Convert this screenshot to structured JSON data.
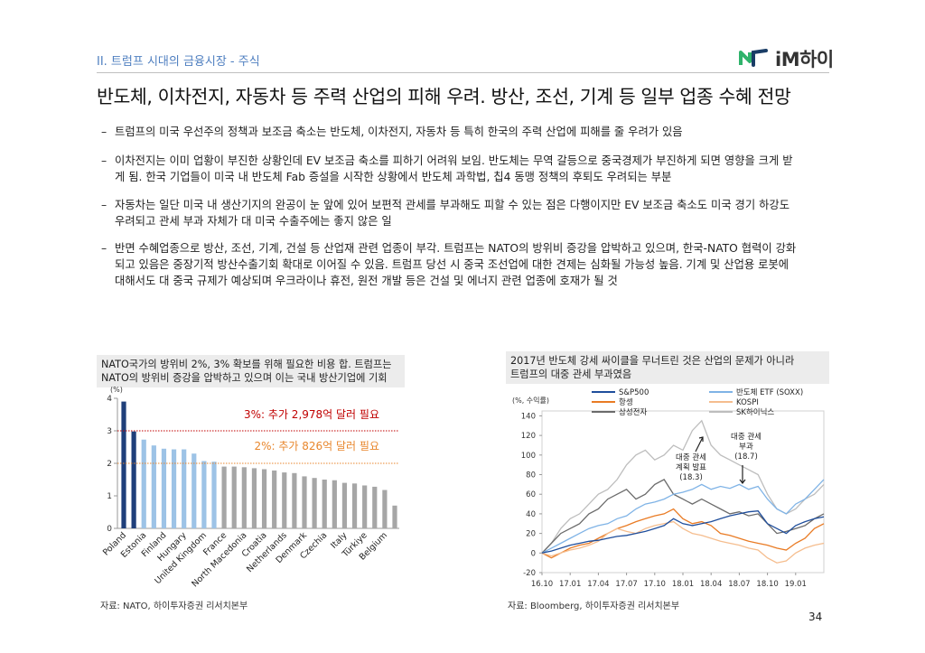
{
  "header": {
    "section": "II. 트럼프 시대의 금융시장 - 주식",
    "logo": "iM하이"
  },
  "title": "반도체, 이차전지, 자동차 등 주력 산업의 피해 우려. 방산, 조선, 기계 등 일부 업종 수혜 전망",
  "bullets": [
    [
      "트럼프의 미국 우선주의 정책과 보조금 축소는 반도체, 이차전지, 자동차 등 특히 한국의 주력 산업에 피해를 줄 우려가 있음"
    ],
    [
      "이차전지는 이미 업황이 부진한 상황인데 EV 보조금 축소를 피하기 어려워 보임. 반도체는 무역 갈등으로 중국경제가 부진하게 되면 영향을 크게 받",
      "게 됨. 한국 기업들이 미국 내 반도체 Fab 증설을 시작한 상황에서 반도체 과학법, 칩4 동맹 정책의 후퇴도 우려되는 부분"
    ],
    [
      "자동차는 일단 미국 내 생산기지의 완공이 눈 앞에 있어 보편적 관세를 부과해도 피할 수 있는 점은 다행이지만 EV 보조금 축소도 미국 경기 하강도",
      "우려되고 관세 부과 자체가 대 미국 수출주에는 좋지 않은 일"
    ],
    [
      "반면 수혜업종으로 방산, 조선, 기계, 건설 등 산업재 관련 업종이 부각. 트럼프는 NATO의 방위비 증강을 압박하고 있으며, 한국-NATO 협력이 강화",
      "되고 있음은 중장기적 방산수출기회 확대로 이어질 수 있음. 트럼프 당선 시 중국 조선업에 대한 견제는 심화될 가능성 높음. 기계 및 산업용 로봇에",
      "대해서도 대 중국 규제가 예상되며 우크라이나 휴전, 원전 개발 등은 건설 및 에너지 관련 업종에 호재가 될 것"
    ]
  ],
  "chart_data": [
    {
      "type": "bar",
      "title": [
        "NATO국가의 방위비 2%, 3% 확보를 위해 필요한 비용 합. 트럼프는",
        "NATO의 방위비 증강을 압박하고 있으며 이는 국내 방산기업에 기회"
      ],
      "y_label": "(%)",
      "categories": [
        "Poland",
        null,
        "Estonia",
        null,
        "Finland",
        null,
        "Hungary",
        null,
        "United Kingdom",
        null,
        "France",
        null,
        "North Macedonia",
        null,
        "Croatia",
        null,
        "Netherlands",
        null,
        "Denmark",
        null,
        "Czechia",
        null,
        "Italy",
        null,
        "Türkiye",
        null,
        "Belgium",
        null
      ],
      "values": [
        3.9,
        2.98,
        2.73,
        2.55,
        2.45,
        2.43,
        2.43,
        2.3,
        2.07,
        2.05,
        1.9,
        1.9,
        1.88,
        1.85,
        1.82,
        1.78,
        1.72,
        1.7,
        1.6,
        1.55,
        1.5,
        1.48,
        1.4,
        1.38,
        1.32,
        1.28,
        1.18,
        0.7
      ],
      "colors": [
        "#1f3f7a",
        "#1f3f7a",
        "#9dc3e6",
        "#9dc3e6",
        "#9dc3e6",
        "#9dc3e6",
        "#9dc3e6",
        "#9dc3e6",
        "#9dc3e6",
        "#9dc3e6",
        "#a6a6a6",
        "#a6a6a6",
        "#a6a6a6",
        "#a6a6a6",
        "#a6a6a6",
        "#a6a6a6",
        "#a6a6a6",
        "#a6a6a6",
        "#a6a6a6",
        "#a6a6a6",
        "#a6a6a6",
        "#a6a6a6",
        "#a6a6a6",
        "#a6a6a6",
        "#a6a6a6",
        "#a6a6a6",
        "#a6a6a6",
        "#a6a6a6"
      ],
      "ylim": [
        0,
        4
      ],
      "yticks": [
        0,
        1,
        2,
        3,
        4
      ],
      "reference_lines": [
        {
          "value": 3,
          "label": "3%: 추가 2,978억 달러 필요",
          "color": "#c00000"
        },
        {
          "value": 2,
          "label": "2%: 추가 826억 달러 필요",
          "color": "#e8862c"
        }
      ],
      "source": "자료: NATO, 하이투자증권 리서치본부"
    },
    {
      "type": "line",
      "title": [
        "2017년 반도체 강세 싸이클을 무너트린 것은 산업의 문제가 아니라",
        "트럼프의 대중 관세 부과였음"
      ],
      "y_label": "(%, 수익률)",
      "categories": [
        "16.10",
        null,
        null,
        "17.01",
        null,
        null,
        "17.04",
        null,
        null,
        "17.07",
        null,
        null,
        "17.10",
        null,
        null,
        "18.01",
        null,
        null,
        "18.04",
        null,
        null,
        "18.07",
        null,
        null,
        "18.10",
        null,
        null,
        "19.01",
        null,
        null,
        null
      ],
      "series": [
        {
          "name": "S&P500",
          "color": "#1f4e9c",
          "values": [
            0,
            2,
            5,
            8,
            10,
            12,
            13,
            15,
            17,
            18,
            20,
            22,
            25,
            28,
            35,
            30,
            28,
            30,
            32,
            35,
            38,
            40,
            42,
            43,
            30,
            25,
            20,
            28,
            32,
            35,
            37
          ]
        },
        {
          "name": "항셍",
          "color": "#e97b24",
          "values": [
            0,
            -5,
            0,
            5,
            8,
            10,
            15,
            20,
            25,
            28,
            32,
            35,
            38,
            40,
            45,
            35,
            30,
            32,
            28,
            20,
            18,
            15,
            12,
            10,
            8,
            5,
            3,
            10,
            15,
            25,
            30
          ]
        },
        {
          "name": "삼성전자",
          "color": "#6b6b6b",
          "values": [
            0,
            10,
            20,
            25,
            30,
            40,
            45,
            55,
            60,
            65,
            55,
            60,
            70,
            75,
            60,
            55,
            50,
            55,
            50,
            45,
            40,
            42,
            38,
            40,
            30,
            20,
            22,
            25,
            28,
            35,
            40
          ]
        },
        {
          "name": "반도체 ETF (SOXX)",
          "color": "#7fb3e6",
          "values": [
            0,
            5,
            10,
            15,
            20,
            25,
            28,
            30,
            35,
            38,
            45,
            50,
            52,
            55,
            60,
            62,
            65,
            70,
            65,
            68,
            66,
            70,
            65,
            68,
            55,
            45,
            40,
            50,
            55,
            65,
            75
          ]
        },
        {
          "name": "KOSPI",
          "color": "#f5bd8e",
          "values": [
            0,
            -3,
            0,
            3,
            5,
            8,
            12,
            20,
            25,
            22,
            20,
            25,
            28,
            30,
            32,
            25,
            20,
            18,
            15,
            12,
            10,
            8,
            5,
            3,
            -5,
            -10,
            -8,
            0,
            5,
            8,
            10
          ]
        },
        {
          "name": "SK하이닉스",
          "color": "#bdbdbd",
          "values": [
            0,
            10,
            25,
            35,
            40,
            50,
            60,
            65,
            75,
            90,
            100,
            105,
            95,
            100,
            110,
            105,
            125,
            135,
            110,
            100,
            95,
            90,
            85,
            80,
            60,
            45,
            40,
            45,
            55,
            60,
            70
          ]
        }
      ],
      "ylim": [
        -20,
        145
      ],
      "yticks": [
        -20,
        0,
        20,
        40,
        60,
        80,
        100,
        120,
        140
      ],
      "annotations": [
        [
          "대중 관세",
          "계획 발표",
          "(18.3)"
        ],
        [
          "대중 관세",
          "부과",
          "(18.7)"
        ]
      ],
      "source": "자료: Bloomberg, 하이투자증권 리서치본부"
    }
  ],
  "page_number": "34"
}
